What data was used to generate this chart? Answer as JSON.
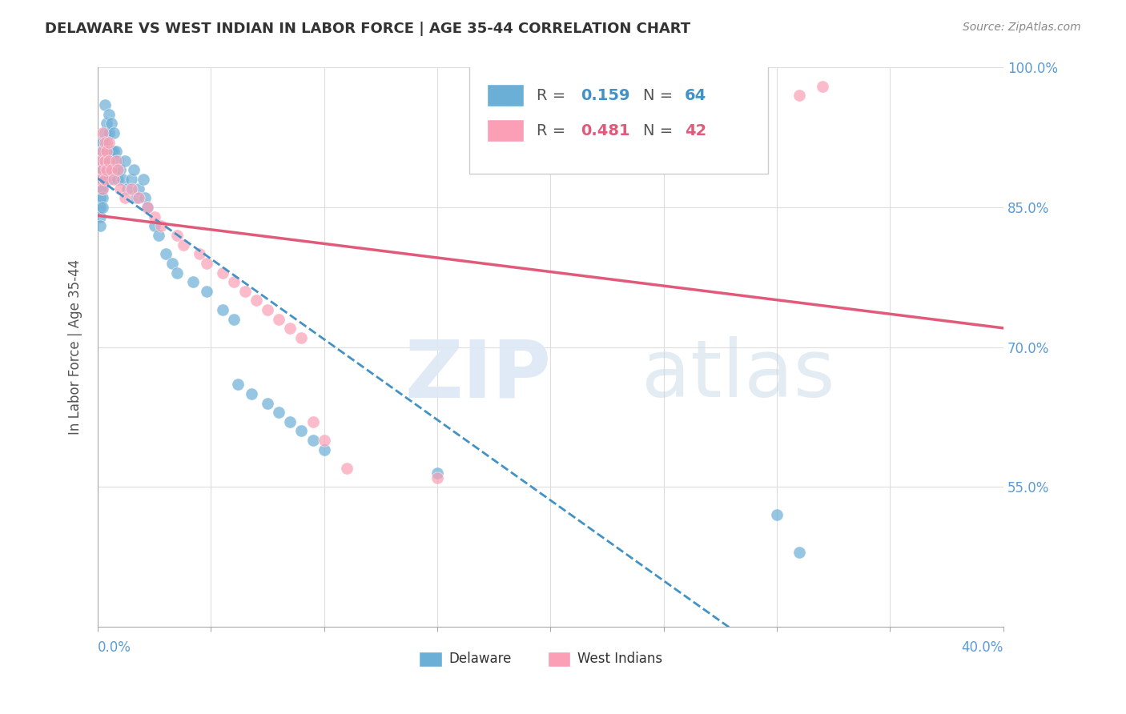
{
  "title": "DELAWARE VS WEST INDIAN IN LABOR FORCE | AGE 35-44 CORRELATION CHART",
  "source": "Source: ZipAtlas.com",
  "ylabel": "In Labor Force | Age 35-44",
  "xmin": 0.0,
  "xmax": 0.4,
  "ymin": 0.4,
  "ymax": 1.0,
  "legend_r1": "0.159",
  "legend_n1": "64",
  "legend_r2": "0.481",
  "legend_n2": "42",
  "blue_color": "#6baed6",
  "pink_color": "#fa9fb5",
  "line_blue": "#4292c6",
  "line_pink": "#e05a7a",
  "axis_color": "#5b9bd5",
  "delaware_x": [
    0.001,
    0.001,
    0.001,
    0.001,
    0.001,
    0.002,
    0.002,
    0.002,
    0.002,
    0.002,
    0.002,
    0.002,
    0.002,
    0.003,
    0.003,
    0.003,
    0.003,
    0.003,
    0.004,
    0.004,
    0.004,
    0.005,
    0.005,
    0.005,
    0.005,
    0.006,
    0.006,
    0.007,
    0.007,
    0.007,
    0.008,
    0.009,
    0.009,
    0.01,
    0.011,
    0.012,
    0.013,
    0.015,
    0.016,
    0.017,
    0.018,
    0.02,
    0.021,
    0.022,
    0.025,
    0.027,
    0.03,
    0.033,
    0.035,
    0.042,
    0.048,
    0.055,
    0.06,
    0.062,
    0.068,
    0.075,
    0.08,
    0.085,
    0.09,
    0.095,
    0.1,
    0.15,
    0.3,
    0.31
  ],
  "delaware_y": [
    0.87,
    0.86,
    0.85,
    0.84,
    0.83,
    0.92,
    0.91,
    0.9,
    0.89,
    0.88,
    0.87,
    0.86,
    0.85,
    0.96,
    0.93,
    0.91,
    0.9,
    0.88,
    0.94,
    0.92,
    0.9,
    0.95,
    0.93,
    0.9,
    0.88,
    0.94,
    0.91,
    0.93,
    0.91,
    0.89,
    0.91,
    0.9,
    0.88,
    0.89,
    0.88,
    0.9,
    0.87,
    0.88,
    0.89,
    0.86,
    0.87,
    0.88,
    0.86,
    0.85,
    0.83,
    0.82,
    0.8,
    0.79,
    0.78,
    0.77,
    0.76,
    0.74,
    0.73,
    0.66,
    0.65,
    0.64,
    0.63,
    0.62,
    0.61,
    0.6,
    0.59,
    0.565,
    0.52,
    0.48
  ],
  "westindian_x": [
    0.001,
    0.001,
    0.002,
    0.002,
    0.002,
    0.002,
    0.003,
    0.003,
    0.003,
    0.004,
    0.004,
    0.005,
    0.005,
    0.006,
    0.007,
    0.008,
    0.009,
    0.01,
    0.012,
    0.015,
    0.018,
    0.022,
    0.025,
    0.028,
    0.035,
    0.038,
    0.045,
    0.048,
    0.055,
    0.06,
    0.065,
    0.07,
    0.075,
    0.08,
    0.085,
    0.09,
    0.095,
    0.1,
    0.11,
    0.15,
    0.31,
    0.32
  ],
  "westindian_y": [
    0.9,
    0.88,
    0.93,
    0.91,
    0.89,
    0.87,
    0.92,
    0.9,
    0.88,
    0.91,
    0.89,
    0.92,
    0.9,
    0.89,
    0.88,
    0.9,
    0.89,
    0.87,
    0.86,
    0.87,
    0.86,
    0.85,
    0.84,
    0.83,
    0.82,
    0.81,
    0.8,
    0.79,
    0.78,
    0.77,
    0.76,
    0.75,
    0.74,
    0.73,
    0.72,
    0.71,
    0.62,
    0.6,
    0.57,
    0.56,
    0.97,
    0.98
  ]
}
